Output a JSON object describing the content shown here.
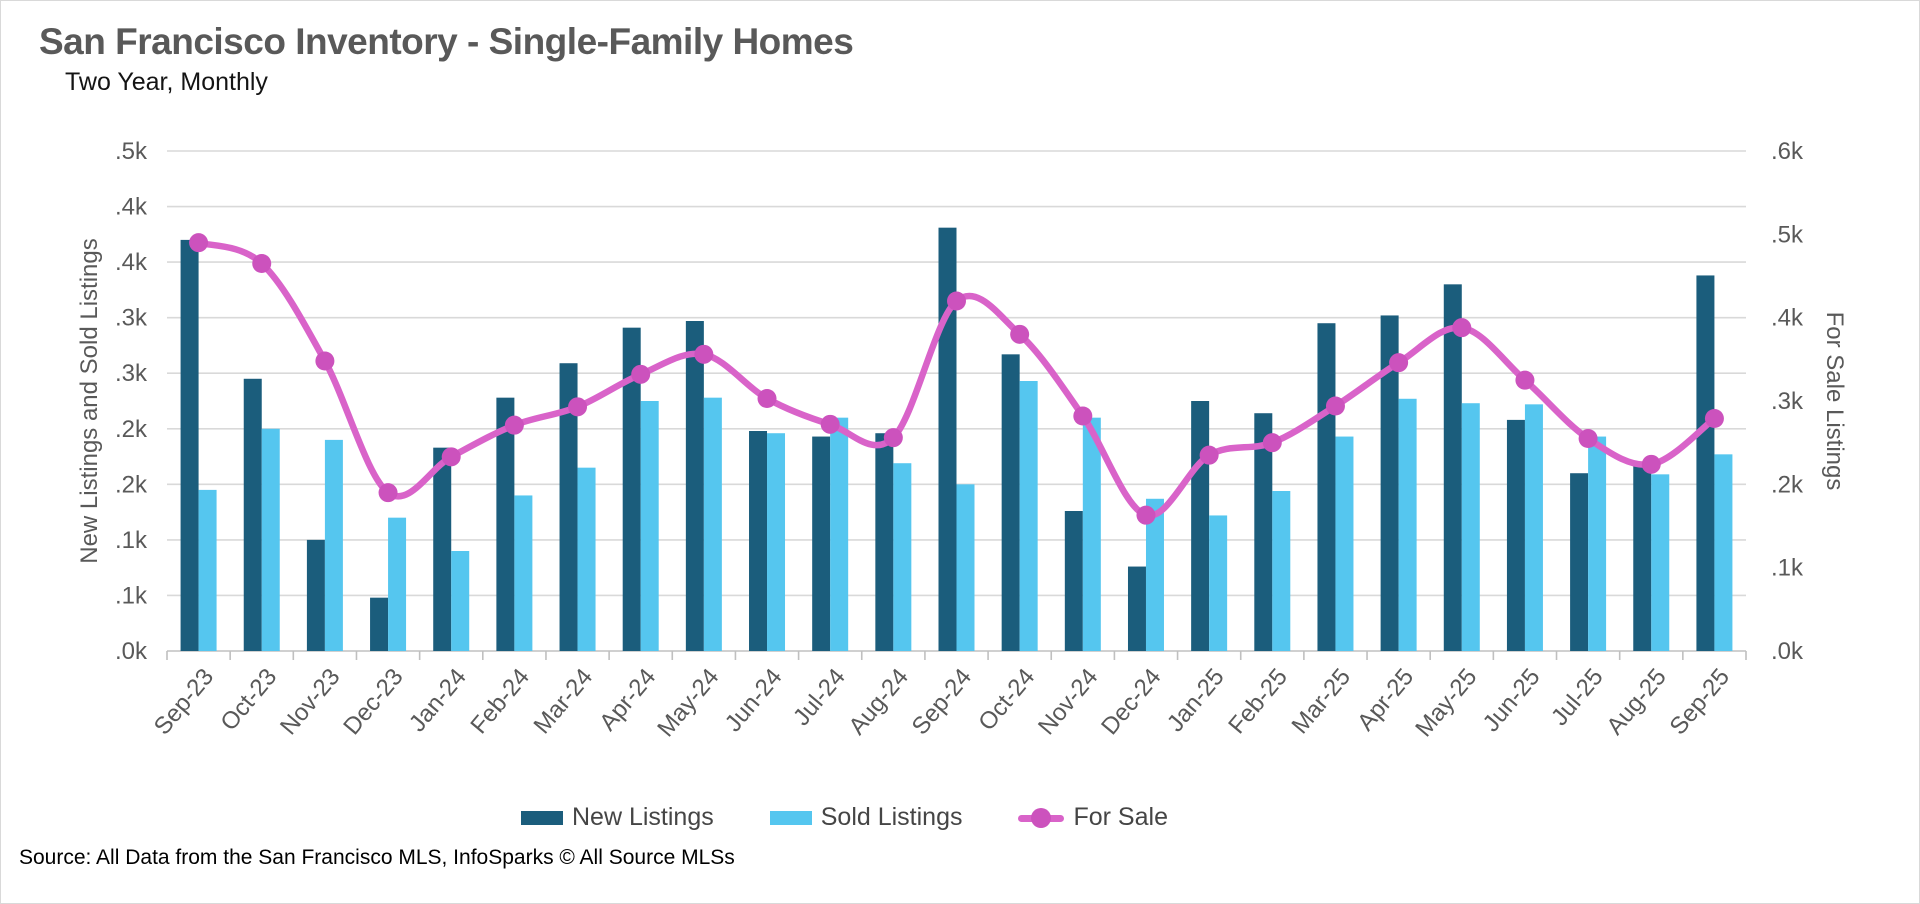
{
  "header": {
    "title": "San Francisco Inventory - Single-Family Homes",
    "subtitle": "Two Year, Monthly"
  },
  "chart_data": {
    "type": "combo-bar-line",
    "title": "San Francisco Inventory - Single-Family Homes",
    "subtitle": "Two Year, Monthly",
    "categories": [
      "Sep-23",
      "Oct-23",
      "Nov-23",
      "Dec-23",
      "Jan-24",
      "Feb-24",
      "Mar-24",
      "Apr-24",
      "May-24",
      "Jun-24",
      "Jul-24",
      "Aug-24",
      "Sep-24",
      "Oct-24",
      "Nov-24",
      "Dec-24",
      "Jan-25",
      "Feb-25",
      "Mar-25",
      "Apr-25",
      "May-25",
      "Jun-25",
      "Jul-25",
      "Aug-25",
      "Sep-25"
    ],
    "series": [
      {
        "name": "New Listings",
        "type": "bar",
        "axis": "left",
        "values": [
          370,
          245,
          100,
          48,
          183,
          228,
          259,
          291,
          297,
          198,
          193,
          196,
          381,
          267,
          126,
          76,
          225,
          214,
          295,
          302,
          330,
          208,
          160,
          170,
          338
        ]
      },
      {
        "name": "Sold Listings",
        "type": "bar",
        "axis": "left",
        "values": [
          145,
          200,
          190,
          120,
          90,
          140,
          165,
          225,
          228,
          196,
          210,
          169,
          150,
          243,
          210,
          137,
          122,
          144,
          193,
          227,
          223,
          222,
          193,
          159,
          177
        ]
      },
      {
        "name": "For Sale",
        "type": "line",
        "axis": "right",
        "smooth": true,
        "markers": true,
        "values": [
          490,
          465,
          348,
          190,
          233,
          271,
          293,
          332,
          356,
          303,
          272,
          256,
          420,
          380,
          282,
          163,
          235,
          250,
          294,
          346,
          388,
          325,
          255,
          224,
          279
        ]
      }
    ],
    "left_axis": {
      "title": "New Listings and Sold Listings",
      "range": [
        0,
        450
      ],
      "tick_step": 50,
      "tick_labels_bottom_up": [
        ".0k",
        ".1k",
        ".1k",
        ".2k",
        ".2k",
        ".3k",
        ".3k",
        ".4k",
        ".4k",
        ".5k"
      ]
    },
    "right_axis": {
      "title": "For Sale Listings",
      "range": [
        0,
        600
      ],
      "tick_step": 100,
      "tick_labels_bottom_up": [
        ".0k",
        ".1k",
        ".2k",
        ".3k",
        ".4k",
        ".5k",
        ".6k"
      ]
    },
    "x_axis": {
      "tick_label_rotation_deg": -50
    },
    "gridlines": "horizontal",
    "legend_position": "bottom"
  },
  "legend": [
    {
      "label": "New Listings"
    },
    {
      "label": "Sold Listings"
    },
    {
      "label": "For Sale"
    }
  ],
  "source": {
    "text": "Source: All Data from the San Francisco MLS, InfoSparks © All Source MLSs"
  },
  "colors": {
    "new_listings": "#1B5D7C",
    "sold_listings": "#55C6EF",
    "for_sale_line": "#D963C9",
    "for_sale_marker": "#CC52BD",
    "gridline": "#D9D9D9",
    "axis_line": "#C0C0C0",
    "axis_text": "#595959"
  }
}
